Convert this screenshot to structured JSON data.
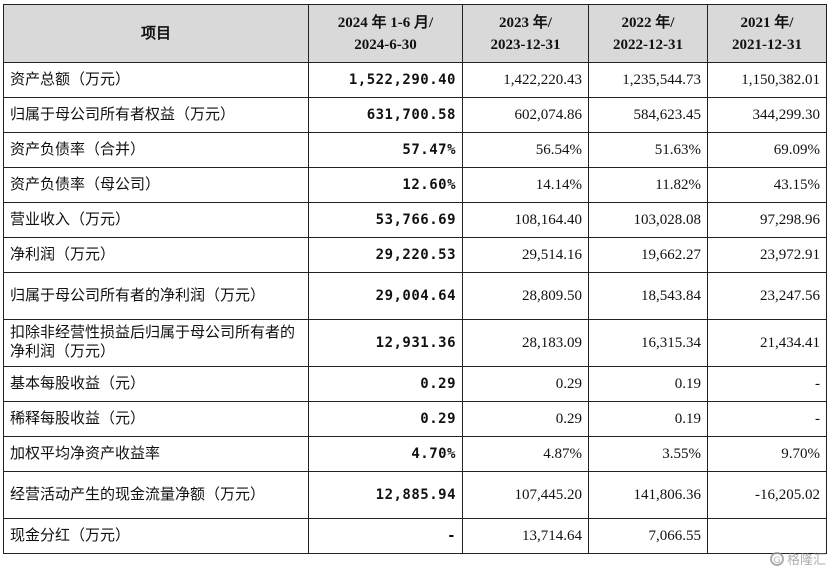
{
  "header": {
    "item": "项目",
    "col1": [
      "2024 年 1-6 月/",
      "2024-6-30"
    ],
    "col2": [
      "2023 年/",
      "2023-12-31"
    ],
    "col3": [
      "2022 年/",
      "2022-12-31"
    ],
    "col4": [
      "2021 年/",
      "2021-12-31"
    ]
  },
  "rows": [
    {
      "label": "资产总额（万元）",
      "v2024": "1,522,290.40",
      "v2023": "1,422,220.43",
      "v2022": "1,235,544.73",
      "v2021": "1,150,382.01"
    },
    {
      "label": "归属于母公司所有者权益（万元）",
      "v2024": "631,700.58",
      "v2023": "602,074.86",
      "v2022": "584,623.45",
      "v2021": "344,299.30"
    },
    {
      "label": "资产负债率（合并）",
      "v2024": "57.47%",
      "v2023": "56.54%",
      "v2022": "51.63%",
      "v2021": "69.09%"
    },
    {
      "label": "资产负债率（母公司）",
      "v2024": "12.60%",
      "v2023": "14.14%",
      "v2022": "11.82%",
      "v2021": "43.15%"
    },
    {
      "label": "营业收入（万元）",
      "v2024": "53,766.69",
      "v2023": "108,164.40",
      "v2022": "103,028.08",
      "v2021": "97,298.96"
    },
    {
      "label": "净利润（万元）",
      "v2024": "29,220.53",
      "v2023": "29,514.16",
      "v2022": "19,662.27",
      "v2021": "23,972.91"
    },
    {
      "label": "归属于母公司所有者的净利润（万元）",
      "v2024": "29,004.64",
      "v2023": "28,809.50",
      "v2022": "18,543.84",
      "v2021": "23,247.56"
    },
    {
      "label": "扣除非经营性损益后归属于母公司所有者的净利润（万元）",
      "v2024": "12,931.36",
      "v2023": "28,183.09",
      "v2022": "16,315.34",
      "v2021": "21,434.41"
    },
    {
      "label": "基本每股收益（元）",
      "v2024": "0.29",
      "v2023": "0.29",
      "v2022": "0.19",
      "v2021": "-"
    },
    {
      "label": "稀释每股收益（元）",
      "v2024": "0.29",
      "v2023": "0.29",
      "v2022": "0.19",
      "v2021": "-"
    },
    {
      "label": "加权平均净资产收益率",
      "v2024": "4.70%",
      "v2023": "4.87%",
      "v2022": "3.55%",
      "v2021": "9.70%"
    },
    {
      "label": "经营活动产生的现金流量净额（万元）",
      "v2024": "12,885.94",
      "v2023": "107,445.20",
      "v2022": "141,806.36",
      "v2021": "-16,205.02"
    },
    {
      "label": "现金分红（万元）",
      "v2024": "-",
      "v2023": "13,714.64",
      "v2022": "7,066.55",
      "v2021": ""
    }
  ],
  "watermark": "格隆汇"
}
